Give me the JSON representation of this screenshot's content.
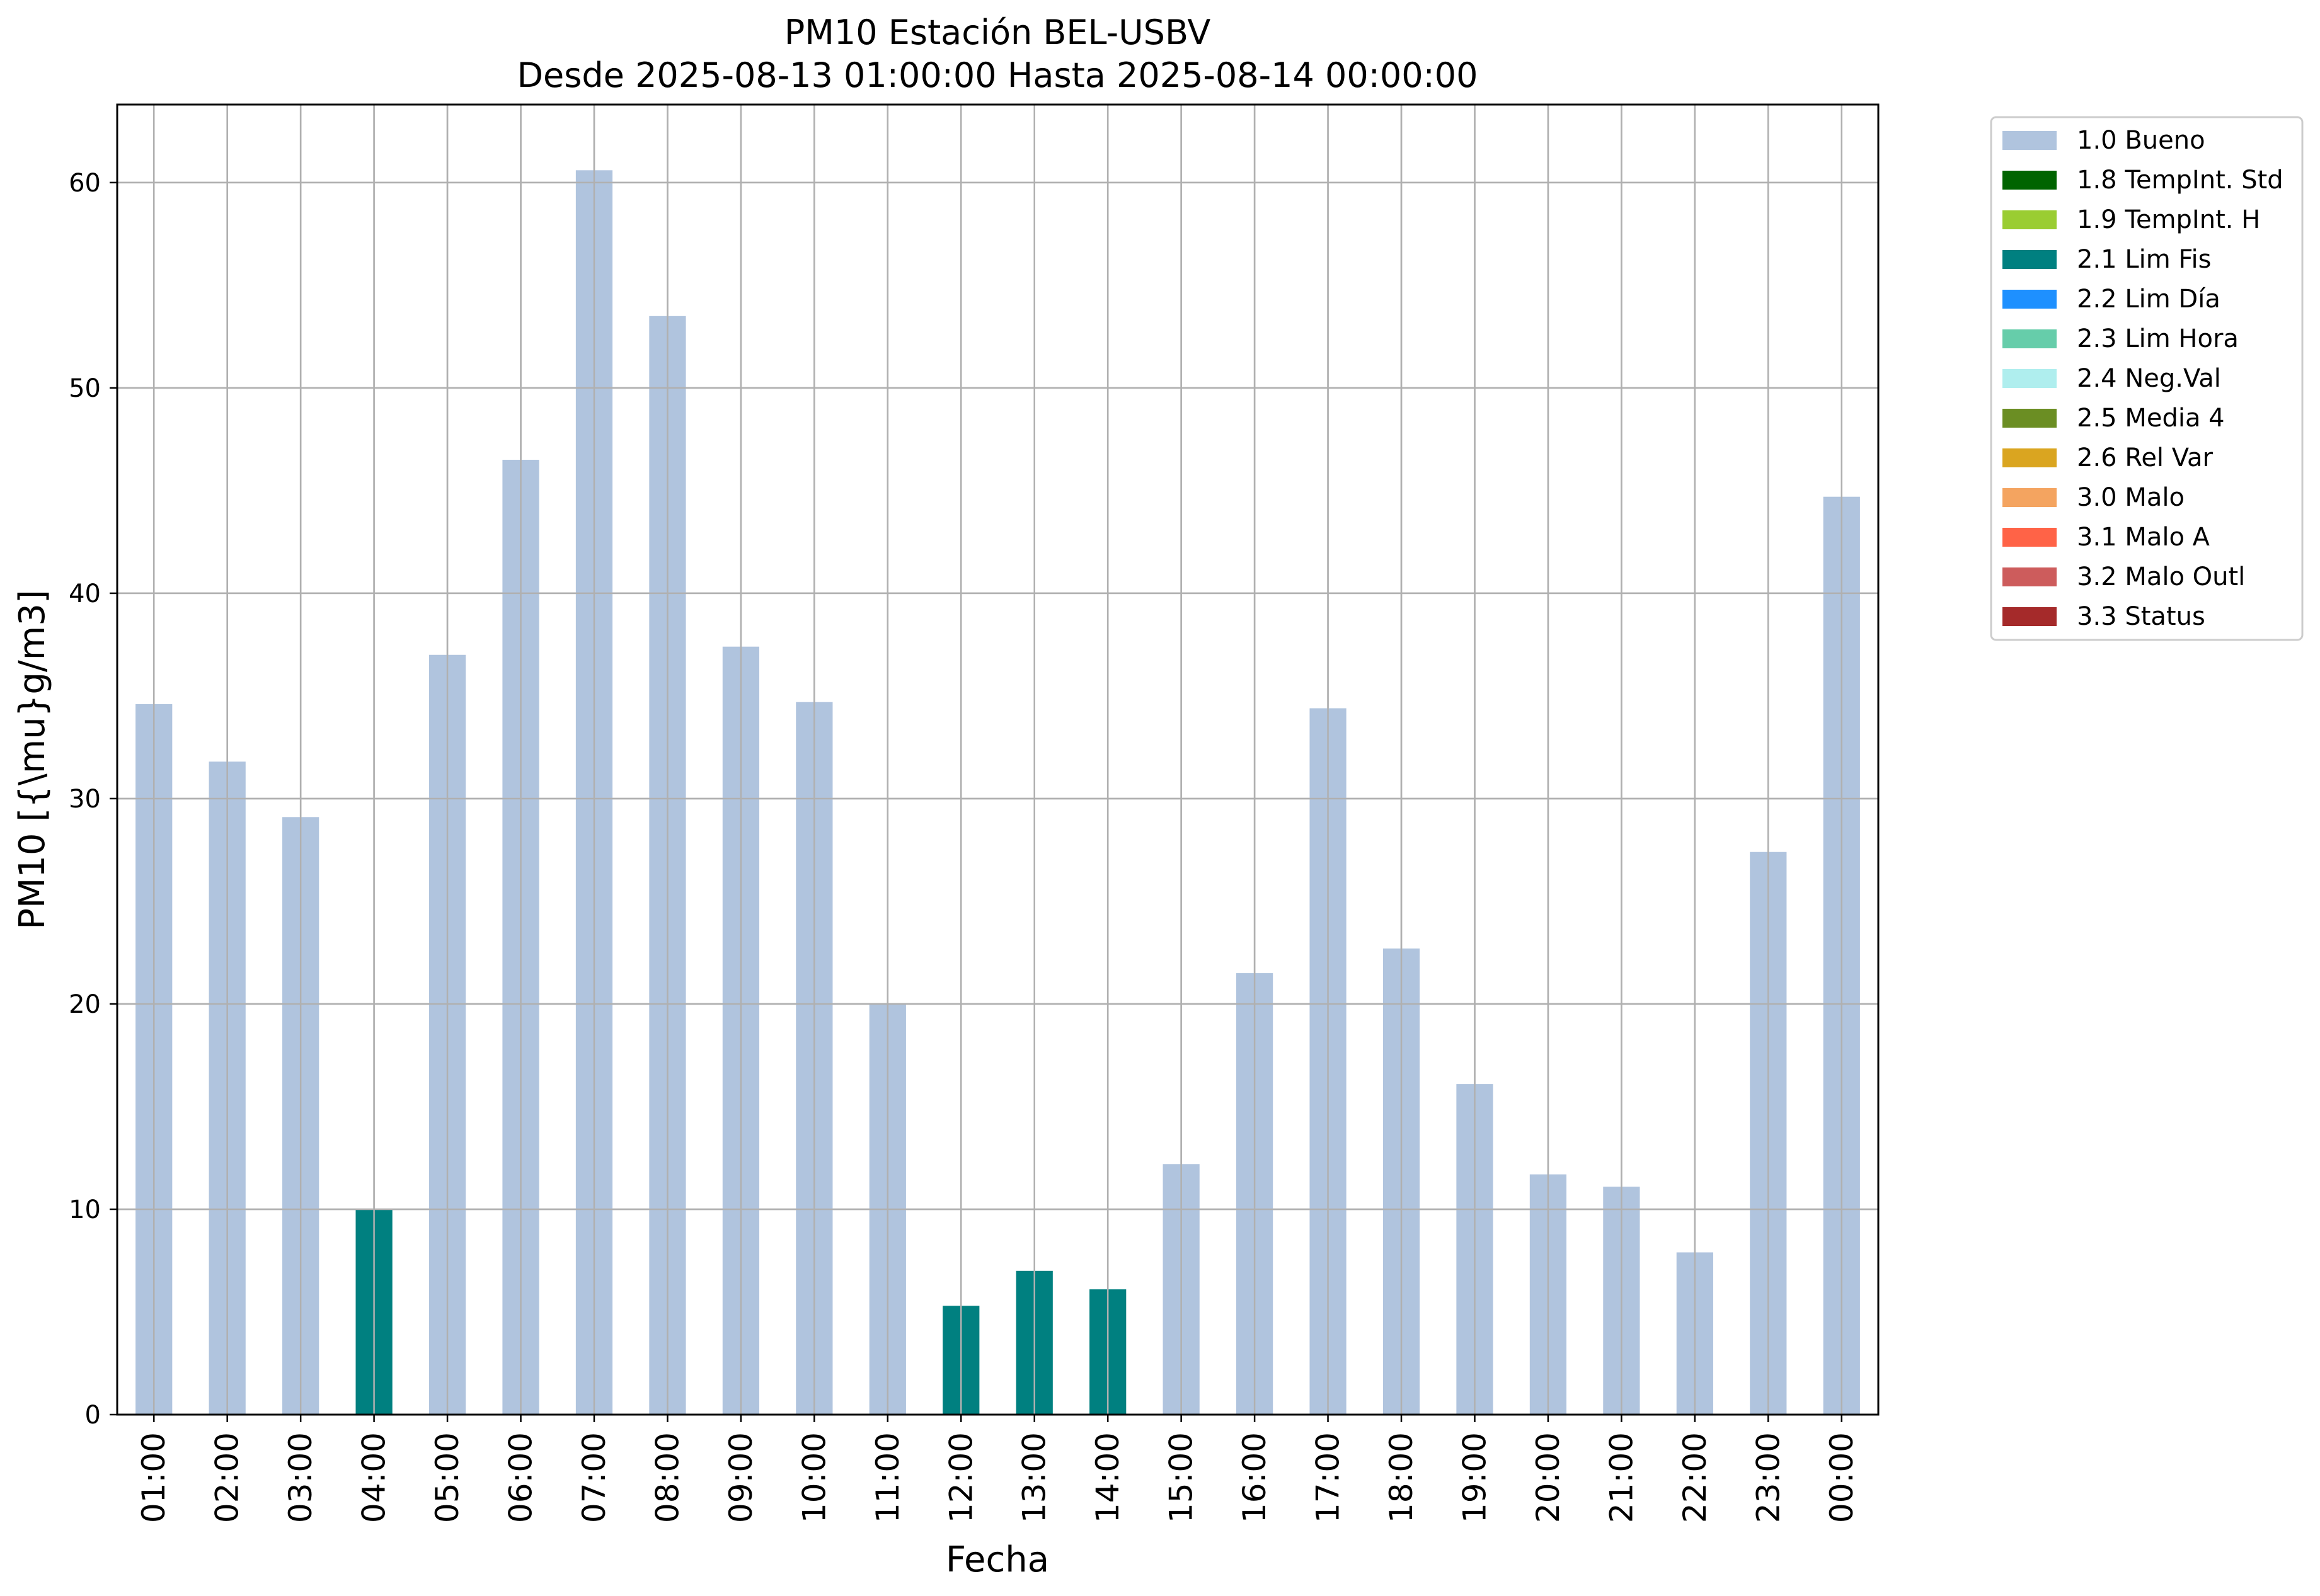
{
  "chart_data": {
    "type": "bar",
    "title": "PM10 Estación BEL-USBV",
    "subtitle": "Desde 2025-08-13 01:00:00 Hasta 2025-08-14 00:00:00",
    "xlabel": "Fecha",
    "ylabel": "PM10 [{\\mu}g/m3]",
    "ylim": [
      0,
      63.8
    ],
    "yticks": [
      0,
      10,
      20,
      30,
      40,
      50,
      60
    ],
    "grid": true,
    "legend_position": "outside-top-right",
    "categories": [
      "01:00",
      "02:00",
      "03:00",
      "04:00",
      "05:00",
      "06:00",
      "07:00",
      "08:00",
      "09:00",
      "10:00",
      "11:00",
      "12:00",
      "13:00",
      "14:00",
      "15:00",
      "16:00",
      "17:00",
      "18:00",
      "19:00",
      "20:00",
      "21:00",
      "22:00",
      "23:00",
      "00:00"
    ],
    "values": [
      34.6,
      31.8,
      29.1,
      10.0,
      37.0,
      46.5,
      60.6,
      53.5,
      37.4,
      34.7,
      20.0,
      5.3,
      7.0,
      6.1,
      12.2,
      21.5,
      34.4,
      22.7,
      16.1,
      11.7,
      11.1,
      7.9,
      27.4,
      44.7
    ],
    "flags": [
      "1.0 Bueno",
      "1.0 Bueno",
      "1.0 Bueno",
      "2.1 Lim Fis",
      "1.0 Bueno",
      "1.0 Bueno",
      "1.0 Bueno",
      "1.0 Bueno",
      "1.0 Bueno",
      "1.0 Bueno",
      "1.0 Bueno",
      "2.1 Lim Fis",
      "2.1 Lim Fis",
      "2.1 Lim Fis",
      "1.0 Bueno",
      "1.0 Bueno",
      "1.0 Bueno",
      "1.0 Bueno",
      "1.0 Bueno",
      "1.0 Bueno",
      "1.0 Bueno",
      "1.0 Bueno",
      "1.0 Bueno",
      "1.0 Bueno"
    ],
    "legend": [
      {
        "label": "1.0 Bueno",
        "color": "#b0c4de"
      },
      {
        "label": "1.8 TempInt. Std",
        "color": "#006400"
      },
      {
        "label": "1.9 TempInt. H",
        "color": "#9acd32"
      },
      {
        "label": "2.1 Lim Fis",
        "color": "#008080"
      },
      {
        "label": "2.2 Lim Día",
        "color": "#1e90ff"
      },
      {
        "label": "2.3 Lim Hora",
        "color": "#66cdaa"
      },
      {
        "label": "2.4 Neg.Val",
        "color": "#afeeee"
      },
      {
        "label": "2.5 Media 4",
        "color": "#6b8e23"
      },
      {
        "label": "2.6 Rel Var",
        "color": "#daa520"
      },
      {
        "label": "3.0 Malo",
        "color": "#f4a460"
      },
      {
        "label": "3.1 Malo A",
        "color": "#ff6347"
      },
      {
        "label": "3.2 Malo Outl",
        "color": "#cd5c5c"
      },
      {
        "label": "3.3 Status",
        "color": "#a52a2a"
      }
    ]
  }
}
